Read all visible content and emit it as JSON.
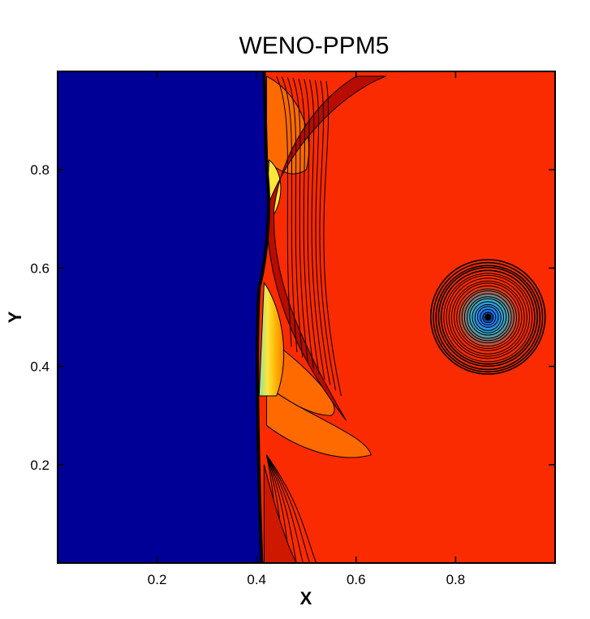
{
  "chart_data": {
    "type": "heatmap",
    "title": "WENO-PPM5",
    "xlabel": "X",
    "ylabel": "Y",
    "xlim": [
      0,
      1
    ],
    "ylim": [
      0,
      1
    ],
    "x_ticks": [
      {
        "value": 0.2,
        "label": "0.2"
      },
      {
        "value": 0.4,
        "label": "0.4"
      },
      {
        "value": 0.6,
        "label": "0.6"
      },
      {
        "value": 0.8,
        "label": "0.8"
      }
    ],
    "y_ticks": [
      {
        "value": 0.2,
        "label": "0.2"
      },
      {
        "value": 0.4,
        "label": "0.4"
      },
      {
        "value": 0.6,
        "label": "0.6"
      },
      {
        "value": 0.8,
        "label": "0.8"
      }
    ],
    "grid": false,
    "colors": {
      "pre_shock": "#000096",
      "post_shock": "#fa2b00",
      "accent_orange": "#ff6a00",
      "accent_yellow": "#ffe53a",
      "vortex_core": "#1e78ff",
      "contour_lines": "#000000"
    },
    "features": {
      "shock_position_x": 0.41,
      "vortex_center": {
        "x": 0.865,
        "y": 0.5
      },
      "vortex_outer_radius": 0.115
    }
  }
}
